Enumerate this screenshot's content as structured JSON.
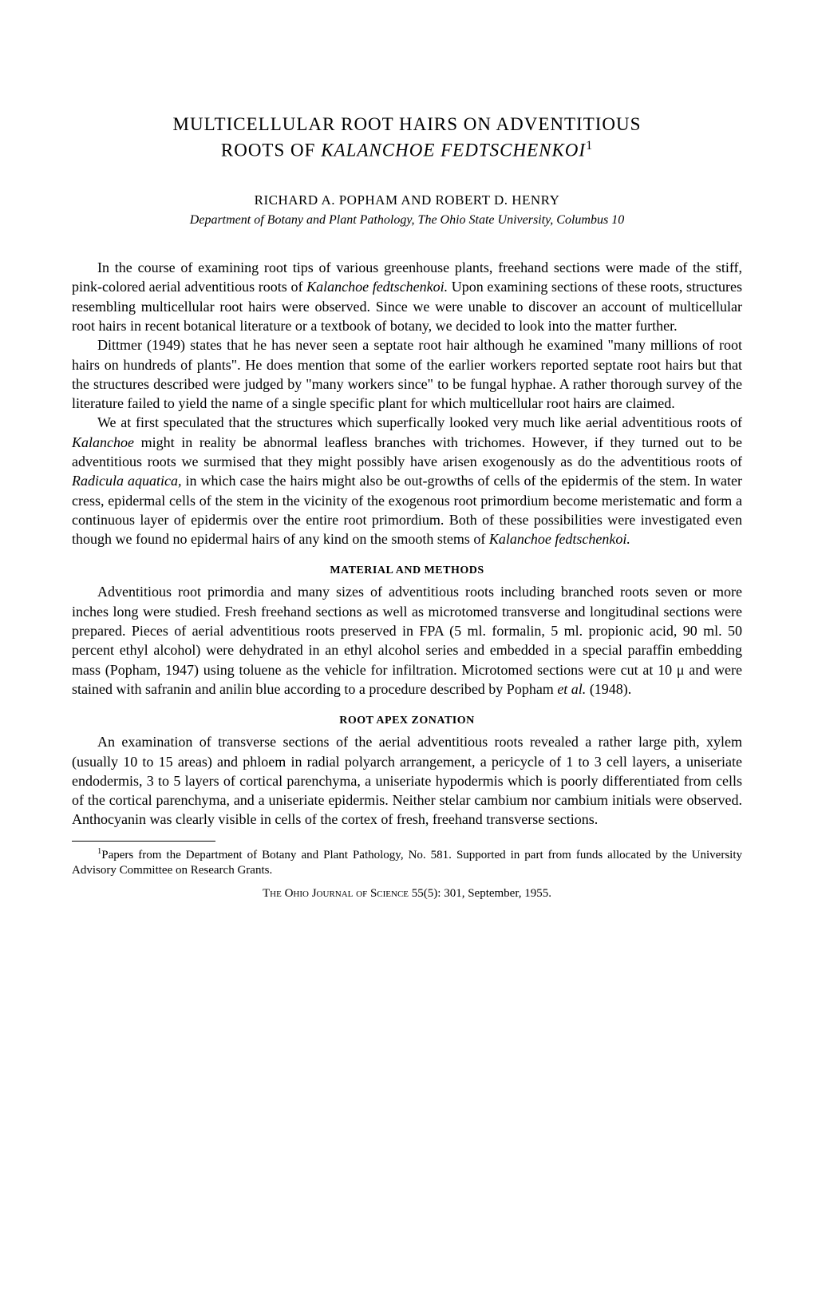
{
  "title_line1": "MULTICELLULAR ROOT HAIRS ON ADVENTITIOUS",
  "title_line2_a": "ROOTS OF ",
  "title_line2_b": "KALANCHOE FEDTSCHENKOI",
  "title_sup": "1",
  "authors": "RICHARD A. POPHAM AND ROBERT D. HENRY",
  "affiliation": "Department of Botany and Plant Pathology, The Ohio State University, Columbus 10",
  "para1_a": "In the course of examining root tips of various greenhouse plants, freehand sections were made of the stiff, pink-colored aerial adventitious roots of ",
  "para1_b": "Kalanchoe fedtschenkoi.",
  "para1_c": " Upon examining sections of these roots, structures resembling multicellular root hairs were observed. Since we were unable to discover an account of multicellular root hairs in recent botanical literature or a textbook of botany, we decided to look into the matter further.",
  "para2": "Dittmer (1949) states that he has never seen a septate root hair although he examined \"many millions of root hairs on hundreds of plants\". He does mention that some of the earlier workers reported septate root hairs but that the structures described were judged by \"many workers since\" to be fungal hyphae. A rather thorough survey of the literature failed to yield the name of a single specific plant for which multicellular root hairs are claimed.",
  "para3_a": "We at first speculated that the structures which superfically looked very much like aerial adventitious roots of ",
  "para3_b": "Kalanchoe",
  "para3_c": " might in reality be abnormal leafless branches with trichomes. However, if they turned out to be adventitious roots we surmised that they might possibly have arisen exogenously as do the adventitious roots of ",
  "para3_d": "Radicula aquatica,",
  "para3_e": " in which case the hairs might also be out-growths of cells of the epidermis of the stem. In water cress, epidermal cells of the stem in the vicinity of the exogenous root primordium become meristematic and form a continuous layer of epidermis over the entire root primordium. Both of these possibilities were investigated even though we found no epidermal hairs of any kind on the smooth stems of ",
  "para3_f": "Kalanchoe fedtschenkoi.",
  "heading1": "MATERIAL AND METHODS",
  "para4_a": "Adventitious root primordia and many sizes of adventitious roots including branched roots seven or more inches long were studied. Fresh freehand sections as well as microtomed transverse and longitudinal sections were prepared. Pieces of aerial adventitious roots preserved in FPA (5 ml. formalin, 5 ml. propionic acid, 90 ml. 50 percent ethyl alcohol) were dehydrated in an ethyl alcohol series and embedded in a special paraffin embedding mass (Popham, 1947) using toluene as the vehicle for infiltration. Microtomed sections were cut at 10 μ and were stained with safranin and anilin blue according to a procedure described by Popham ",
  "para4_b": "et al.",
  "para4_c": " (1948).",
  "heading2": "ROOT APEX ZONATION",
  "para5": "An examination of transverse sections of the aerial adventitious roots revealed a rather large pith, xylem (usually 10 to 15 areas) and phloem in radial polyarch arrangement, a pericycle of 1 to 3 cell layers, a uniseriate endodermis, 3 to 5 layers of cortical parenchyma, a uniseriate hypodermis which is poorly differentiated from cells of the cortical parenchyma, and a uniseriate epidermis. Neither stelar cambium nor cambium initials were observed. Anthocyanin was clearly visible in cells of the cortex of fresh, freehand transverse sections.",
  "footnote_sup": "1",
  "footnote_text": "Papers from the Department of Botany and Plant Pathology, No. 581. Supported in part from funds allocated by the University Advisory Committee on Research Grants.",
  "journal_a": "The Ohio Journal of Science",
  "journal_b": " 55(5): 301, September, 1955."
}
